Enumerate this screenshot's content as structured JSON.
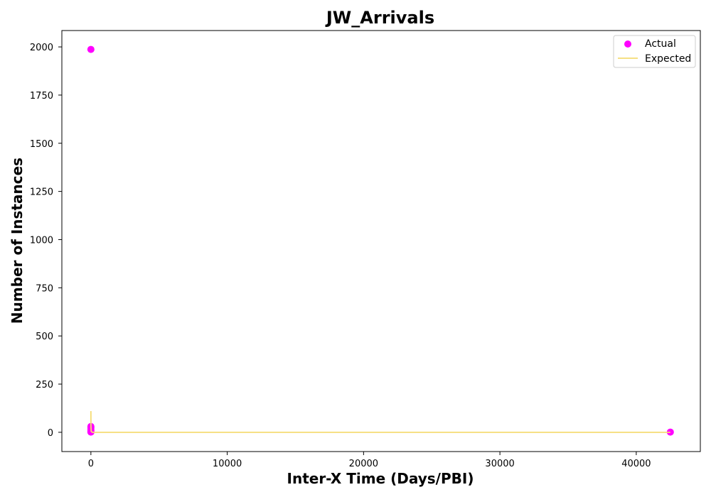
{
  "chart_data": {
    "type": "scatter",
    "title": "JW_Arrivals",
    "xlabel": "Inter-X Time (Days/PBI)",
    "ylabel": "Number of Instances",
    "xlim": [
      -2130,
      44700
    ],
    "ylim": [
      -100,
      2085
    ],
    "xticks": [
      0,
      10000,
      20000,
      30000,
      40000
    ],
    "yticks": [
      0,
      250,
      500,
      750,
      1000,
      1250,
      1500,
      1750,
      2000
    ],
    "grid": false,
    "legend_placement": "top-right",
    "series": [
      {
        "name": "Actual",
        "kind": "scatter",
        "color": "#ff00ff",
        "points": [
          {
            "x": 0,
            "y": 1987
          },
          {
            "x": 0,
            "y": 30
          },
          {
            "x": 0,
            "y": 22
          },
          {
            "x": 0,
            "y": 12
          },
          {
            "x": 0,
            "y": 4
          },
          {
            "x": 0,
            "y": 1
          },
          {
            "x": 42500,
            "y": 1
          }
        ]
      },
      {
        "name": "Expected",
        "kind": "line",
        "color": "#f5dc73",
        "points": [
          {
            "x": 0,
            "y": 110
          },
          {
            "x": 5,
            "y": 30
          },
          {
            "x": 20,
            "y": 5
          },
          {
            "x": 100,
            "y": 0
          },
          {
            "x": 42500,
            "y": 0
          }
        ]
      }
    ]
  }
}
